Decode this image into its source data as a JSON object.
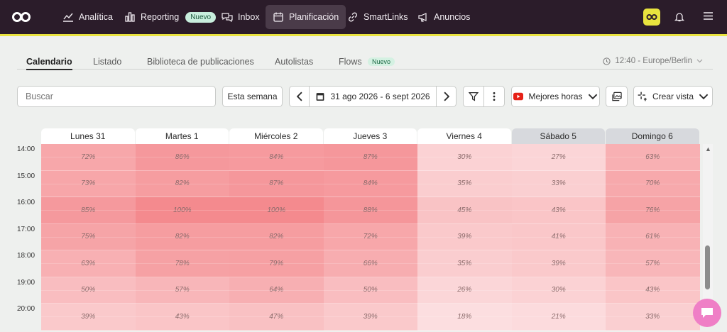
{
  "nav": {
    "items": [
      {
        "label": "Analítica",
        "icon": "chart-line-icon"
      },
      {
        "label": "Reporting",
        "icon": "bar-chart-icon",
        "badge": "Nuevo"
      },
      {
        "label": "Inbox",
        "icon": "chat-bubbles-icon"
      },
      {
        "label": "Planificación",
        "icon": "calendar-icon",
        "active": true
      },
      {
        "label": "SmartLinks",
        "icon": "link-icon"
      },
      {
        "label": "Anuncios",
        "icon": "megaphone-icon"
      }
    ],
    "accent": "#e9e33f"
  },
  "tabs": [
    {
      "label": "Calendario",
      "active": true
    },
    {
      "label": "Listado"
    },
    {
      "label": "Biblioteca de publicaciones"
    },
    {
      "label": "Autolistas"
    },
    {
      "label": "Flows",
      "badge": "Nuevo"
    }
  ],
  "timezone": "12:40 - Europe/Berlin",
  "toolbar": {
    "search_placeholder": "Buscar",
    "this_week": "Esta semana",
    "date_range": "31 ago 2026 - 6 sept 2026",
    "best_hours": "Mejores horas",
    "create_view": "Crear vista"
  },
  "calendar": {
    "days": [
      {
        "label": "Lunes 31",
        "weekend": false
      },
      {
        "label": "Martes 1",
        "weekend": false
      },
      {
        "label": "Miércoles 2",
        "weekend": false
      },
      {
        "label": "Jueves 3",
        "weekend": false
      },
      {
        "label": "Viernes 4",
        "weekend": false
      },
      {
        "label": "Sábado 5",
        "weekend": true
      },
      {
        "label": "Domingo 6",
        "weekend": true
      }
    ],
    "hours": [
      "14:00",
      "15:00",
      "16:00",
      "17:00",
      "18:00",
      "19:00",
      "20:00"
    ],
    "values": [
      [
        72,
        86,
        84,
        87,
        30,
        27,
        63
      ],
      [
        73,
        82,
        87,
        84,
        35,
        33,
        70
      ],
      [
        85,
        100,
        100,
        88,
        45,
        43,
        76
      ],
      [
        75,
        82,
        82,
        72,
        39,
        41,
        61
      ],
      [
        63,
        78,
        79,
        66,
        35,
        39,
        57
      ],
      [
        50,
        57,
        64,
        50,
        26,
        30,
        43
      ],
      [
        39,
        43,
        47,
        39,
        18,
        21,
        33
      ]
    ],
    "heat_color": "#f48a8e"
  }
}
